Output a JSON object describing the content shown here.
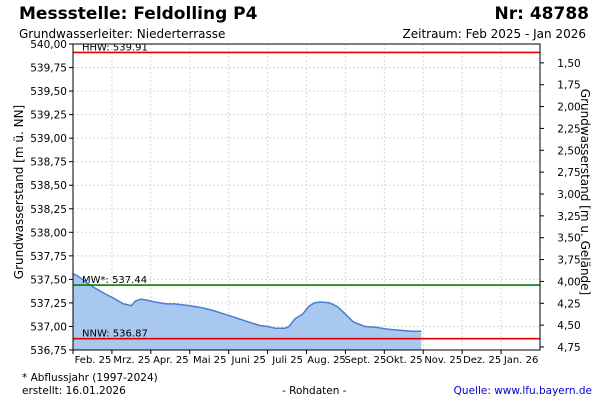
{
  "header": {
    "title": "Messstelle: Feldolling P4",
    "number": "Nr: 48788",
    "aquifer": "Grundwasserleiter:   Niederterrasse",
    "period": "Zeitraum: Feb 2025 - Jan 2026"
  },
  "footer": {
    "note": "* Abflussjahr (1997-2024)",
    "created": "erstellt:  16.01.2026",
    "raw": "- Rohdaten -",
    "source": "Quelle:  www.lfu.bayern.de"
  },
  "colors": {
    "area_fill": "#a8c8f0",
    "line": "#4a7ed0",
    "hhw": "#e00000",
    "nnw": "#e00000",
    "mw": "#008000",
    "grid": "#d8d8d8"
  },
  "chart_data": {
    "type": "area",
    "ylabel": "Grundwasserstand [m ü. NN]",
    "y2label": "Grundwasserstand [m u. Gelände]",
    "ylim": [
      536.75,
      540.0
    ],
    "yticks": [
      "540,00",
      "539,75",
      "539,50",
      "539,25",
      "539,00",
      "538,75",
      "538,50",
      "538,25",
      "538,00",
      "537,75",
      "537,50",
      "537,25",
      "537,00",
      "536,75"
    ],
    "y2lim": [
      1.25,
      4.75
    ],
    "y2ticks": [
      "1,50",
      "1,75",
      "2,00",
      "2,25",
      "2,50",
      "2,75",
      "3,00",
      "3,25",
      "3,50",
      "3,75",
      "4,00",
      "4,25",
      "4,50",
      "4,75"
    ],
    "xticks": [
      "Feb. 25",
      "Mrz. 25",
      "Apr. 25",
      "Mai 25",
      "Juni 25",
      "Juli 25",
      "Aug. 25",
      "Sept. 25",
      "Okt. 25",
      "Nov. 25",
      "Dez. 25",
      "Jan. 26"
    ],
    "grid": true,
    "reference_lines": [
      {
        "label": "HHW: 539.91",
        "value": 539.91
      },
      {
        "label": "MW*: 537.44",
        "value": 537.44
      },
      {
        "label": "NNW: 536.87",
        "value": 536.87
      }
    ],
    "series": [
      {
        "x": [
          0,
          0.1,
          0.25,
          0.4,
          0.6,
          0.85,
          1.0,
          1.3,
          1.5,
          1.6,
          1.75,
          1.9,
          2.1,
          2.4,
          2.6,
          2.8,
          3.0,
          3.3,
          3.6,
          3.9,
          4.2,
          4.5,
          4.8,
          5.0,
          5.2,
          5.3,
          5.45,
          5.55,
          5.7,
          5.9,
          6.05,
          6.2,
          6.35,
          6.6,
          6.8,
          7.0,
          7.2,
          7.5,
          7.8,
          8.1,
          8.4,
          8.7,
          8.95
        ],
        "values": [
          537.56,
          537.54,
          537.5,
          537.45,
          537.4,
          537.34,
          537.31,
          537.24,
          537.22,
          537.27,
          537.29,
          537.28,
          537.26,
          537.24,
          537.24,
          537.23,
          537.22,
          537.2,
          537.17,
          537.13,
          537.09,
          537.05,
          537.01,
          537.0,
          536.98,
          536.98,
          536.98,
          537.0,
          537.08,
          537.13,
          537.21,
          537.25,
          537.26,
          537.25,
          537.21,
          537.13,
          537.05,
          537.0,
          536.99,
          536.97,
          536.96,
          536.95,
          536.95
        ]
      }
    ]
  }
}
